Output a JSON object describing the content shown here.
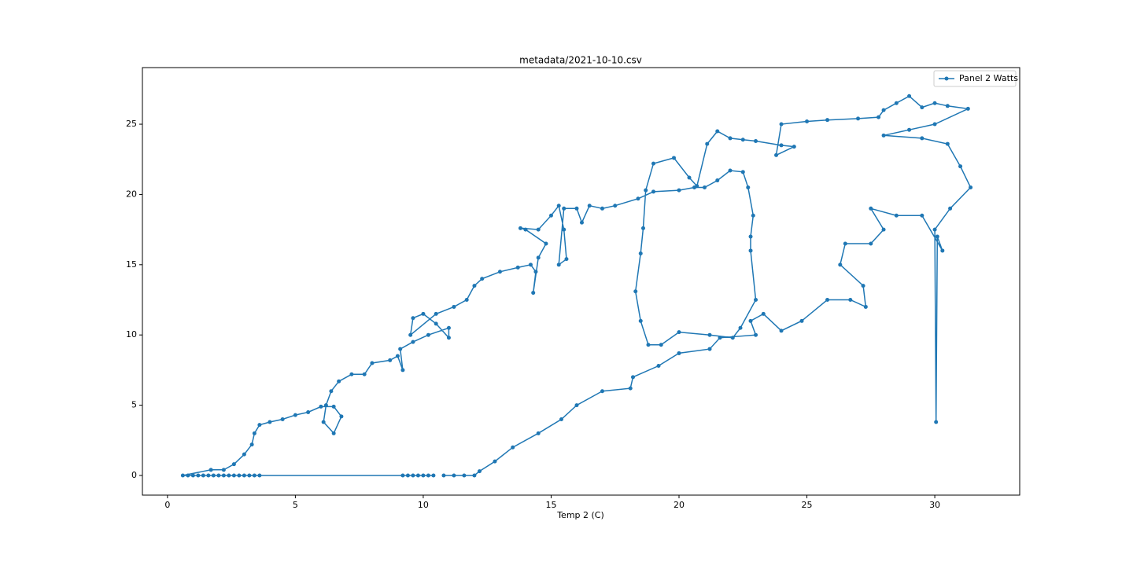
{
  "chart_data": {
    "type": "line",
    "title": "metadata/2021-10-10.csv",
    "x_label": "Temp 2 (C)",
    "x": [
      9.2,
      9.4,
      9.6,
      9.8,
      10.0,
      10.2,
      10.4,
      3.6,
      3.4,
      3.2,
      3.0,
      2.8,
      2.6,
      2.4,
      2.2,
      2.0,
      1.8,
      1.6,
      1.4,
      1.2,
      1.0,
      0.8,
      0.6,
      1.7,
      2.2,
      2.6,
      3.0,
      3.3,
      3.4,
      3.6,
      4.0,
      4.5,
      5.0,
      5.5,
      6.0,
      6.5,
      6.8,
      6.5,
      6.1,
      6.2,
      6.4,
      6.7,
      7.2,
      7.7,
      8.0,
      8.7,
      9.0,
      9.2,
      9.1,
      9.6,
      10.2,
      11.0,
      11.0,
      10.5,
      10.0,
      9.6,
      9.5,
      10.5,
      11.2,
      11.7,
      12.0,
      12.3,
      13.0,
      13.7,
      14.2,
      14.4,
      14.3,
      14.5,
      14.8,
      14.0,
      13.8,
      14.5,
      15.0,
      15.3,
      15.5,
      15.6,
      15.3,
      15.5,
      16.0,
      16.2,
      16.5,
      17.0,
      17.5,
      18.4,
      19.0,
      20.0,
      20.6,
      21.0,
      21.5,
      22.0,
      22.5,
      22.7,
      22.9,
      22.8,
      22.8,
      23.0,
      22.4,
      22.1,
      21.2,
      20.0,
      19.3,
      18.8,
      18.5,
      18.3,
      18.5,
      18.6,
      18.7,
      19.0,
      19.8,
      20.4,
      20.7,
      21.1,
      21.5,
      22.0,
      22.5,
      23.0,
      24.0,
      24.5,
      23.8,
      24.0,
      25.0,
      25.8,
      27.0,
      27.8,
      28.0,
      28.5,
      29.0,
      29.5,
      30.0,
      30.5,
      31.3,
      30.0,
      29.0,
      28.0,
      29.5,
      30.5,
      31.0,
      31.4,
      30.6,
      30.0,
      30.05,
      30.1,
      30.3,
      29.5,
      28.5,
      27.5,
      28.0,
      27.5,
      26.5,
      26.3,
      27.2,
      27.3,
      26.7,
      25.8,
      24.8,
      24.0,
      23.3,
      22.8,
      23.0,
      21.6,
      21.2,
      20.0,
      19.2,
      18.2,
      18.1,
      17.0,
      16.0,
      15.4,
      14.5,
      13.5,
      12.8,
      12.2,
      12.0,
      11.6,
      11.2,
      10.8
    ],
    "series": [
      {
        "name": "Panel 2 Watts",
        "color": "#1f77b4",
        "values": [
          0,
          0,
          0,
          0,
          0,
          0,
          0,
          0,
          0,
          0,
          0,
          0,
          0,
          0,
          0,
          0,
          0,
          0,
          0,
          0,
          0,
          0,
          0,
          0.4,
          0.4,
          0.8,
          1.5,
          2.2,
          3.0,
          3.6,
          3.8,
          4.0,
          4.3,
          4.5,
          4.9,
          4.9,
          4.2,
          3.0,
          3.8,
          5.0,
          6.0,
          6.7,
          7.2,
          7.2,
          8.0,
          8.2,
          8.5,
          7.5,
          9.0,
          9.5,
          10.0,
          10.5,
          9.8,
          10.8,
          11.5,
          11.2,
          10.0,
          11.5,
          12.0,
          12.5,
          13.5,
          14.0,
          14.5,
          14.8,
          15.0,
          14.5,
          13.0,
          15.5,
          16.5,
          17.5,
          17.6,
          17.5,
          18.5,
          19.2,
          17.5,
          15.4,
          15.0,
          19.0,
          19.0,
          18.0,
          19.2,
          19.0,
          19.2,
          19.7,
          20.2,
          20.3,
          20.5,
          20.5,
          21.0,
          21.7,
          21.6,
          20.5,
          18.5,
          17.0,
          16.0,
          12.5,
          10.5,
          9.8,
          10.0,
          10.2,
          9.3,
          9.3,
          11.0,
          13.1,
          15.8,
          17.6,
          20.3,
          22.2,
          22.6,
          21.2,
          20.6,
          23.6,
          24.5,
          24.0,
          23.9,
          23.8,
          23.5,
          23.4,
          22.8,
          25.0,
          25.2,
          25.3,
          25.4,
          25.5,
          26.0,
          26.5,
          27.0,
          26.2,
          26.5,
          26.3,
          26.1,
          25.0,
          24.6,
          24.2,
          24.0,
          23.6,
          22.0,
          20.5,
          19.0,
          17.5,
          3.8,
          17.0,
          16.0,
          18.5,
          18.5,
          19.0,
          17.5,
          16.5,
          16.5,
          15.0,
          13.5,
          12.0,
          12.5,
          12.5,
          11.0,
          10.3,
          11.5,
          11.0,
          10.0,
          9.8,
          9.0,
          8.7,
          7.8,
          7.0,
          6.2,
          6.0,
          5.0,
          4.0,
          3.0,
          2.0,
          1.0,
          0.3,
          0,
          0,
          0,
          0
        ]
      }
    ],
    "xlim": [
      -0.98,
      33.32
    ],
    "ylim": [
      -1.4,
      29.03
    ],
    "xticks": [
      0,
      5,
      10,
      15,
      20,
      25,
      30
    ],
    "yticks": [
      0,
      5,
      10,
      15,
      20,
      25
    ],
    "legend": "upper right"
  }
}
